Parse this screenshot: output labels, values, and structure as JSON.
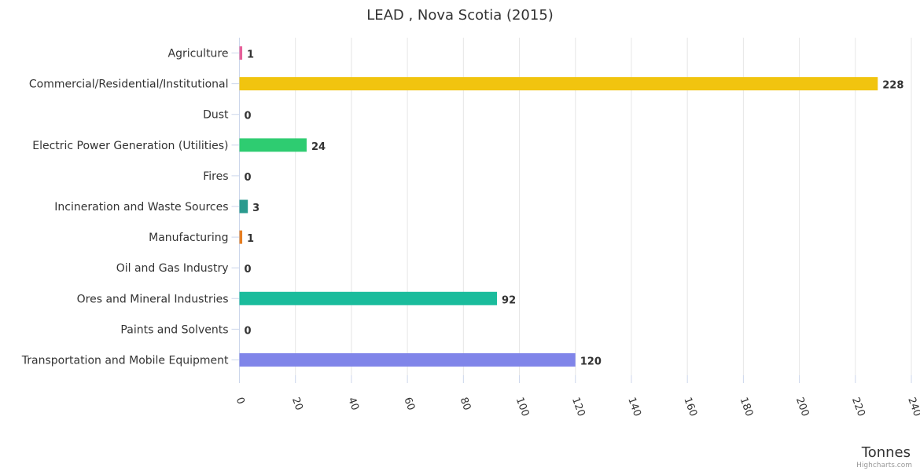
{
  "chart_data": {
    "type": "bar",
    "orientation": "horizontal",
    "title": "LEAD , Nova Scotia (2015)",
    "xlabel": "",
    "ylabel": "Tonnes",
    "xlim": [
      0,
      240
    ],
    "ticks": [
      0,
      20,
      40,
      60,
      80,
      100,
      120,
      140,
      160,
      180,
      200,
      220,
      240
    ],
    "grid": true,
    "legend": "none",
    "credits": "Highcharts.com",
    "categories": [
      "Agriculture",
      "Commercial/Residential/Institutional",
      "Dust",
      "Electric Power Generation (Utilities)",
      "Fires",
      "Incineration and Waste Sources",
      "Manufacturing",
      "Oil and Gas Industry",
      "Ores and Mineral Industries",
      "Paints and Solvents",
      "Transportation and Mobile Equipment"
    ],
    "values": [
      1,
      228,
      0,
      24,
      0,
      3,
      1,
      0,
      92,
      0,
      120
    ],
    "colors": [
      "#e6609a",
      "#f1c40f",
      "#9b59b6",
      "#2ecc71",
      "#e74c3c",
      "#2a9a8e",
      "#e67e22",
      "#3498db",
      "#1abc9c",
      "#c0392b",
      "#8085e9"
    ]
  }
}
